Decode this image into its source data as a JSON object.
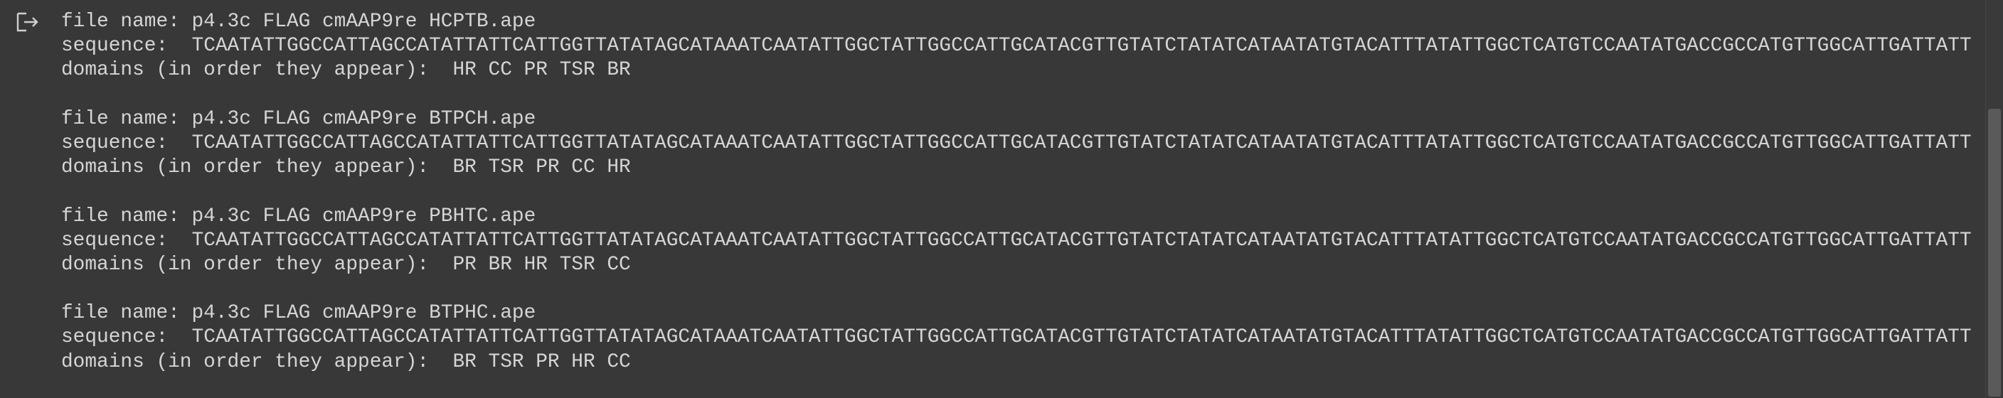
{
  "labels": {
    "file_name": "file name:",
    "sequence": "sequence:",
    "domains": "domains (in order they appear):"
  },
  "records": [
    {
      "file_name": "p4.3c FLAG cmAAP9re HCPTB.ape",
      "sequence": "TCAATATTGGCCATTAGCCATATTATTCATTGGTTATATAGCATAAATCAATATTGGCTATTGGCCATTGCATACGTTGTATCTATATCATAATATGTACATTTATATTGGCTCATGTCCAATATGACCGCCATGTTGGCATTGATTATT",
      "domains": "HR CC PR TSR BR"
    },
    {
      "file_name": "p4.3c FLAG cmAAP9re BTPCH.ape",
      "sequence": "TCAATATTGGCCATTAGCCATATTATTCATTGGTTATATAGCATAAATCAATATTGGCTATTGGCCATTGCATACGTTGTATCTATATCATAATATGTACATTTATATTGGCTCATGTCCAATATGACCGCCATGTTGGCATTGATTATT",
      "domains": "BR TSR PR CC HR"
    },
    {
      "file_name": "p4.3c FLAG cmAAP9re PBHTC.ape",
      "sequence": "TCAATATTGGCCATTAGCCATATTATTCATTGGTTATATAGCATAAATCAATATTGGCTATTGGCCATTGCATACGTTGTATCTATATCATAATATGTACATTTATATTGGCTCATGTCCAATATGACCGCCATGTTGGCATTGATTATT",
      "domains": "PR BR HR TSR CC"
    },
    {
      "file_name": "p4.3c FLAG cmAAP9re BTPHC.ape",
      "sequence": "TCAATATTGGCCATTAGCCATATTATTCATTGGTTATATAGCATAAATCAATATTGGCTATTGGCCATTGCATACGTTGTATCTATATCATAATATGTACATTTATATTGGCTCATGTCCAATATGACCGCCATGTTGGCATTGATTATT",
      "domains": "BR TSR PR HR CC"
    }
  ]
}
